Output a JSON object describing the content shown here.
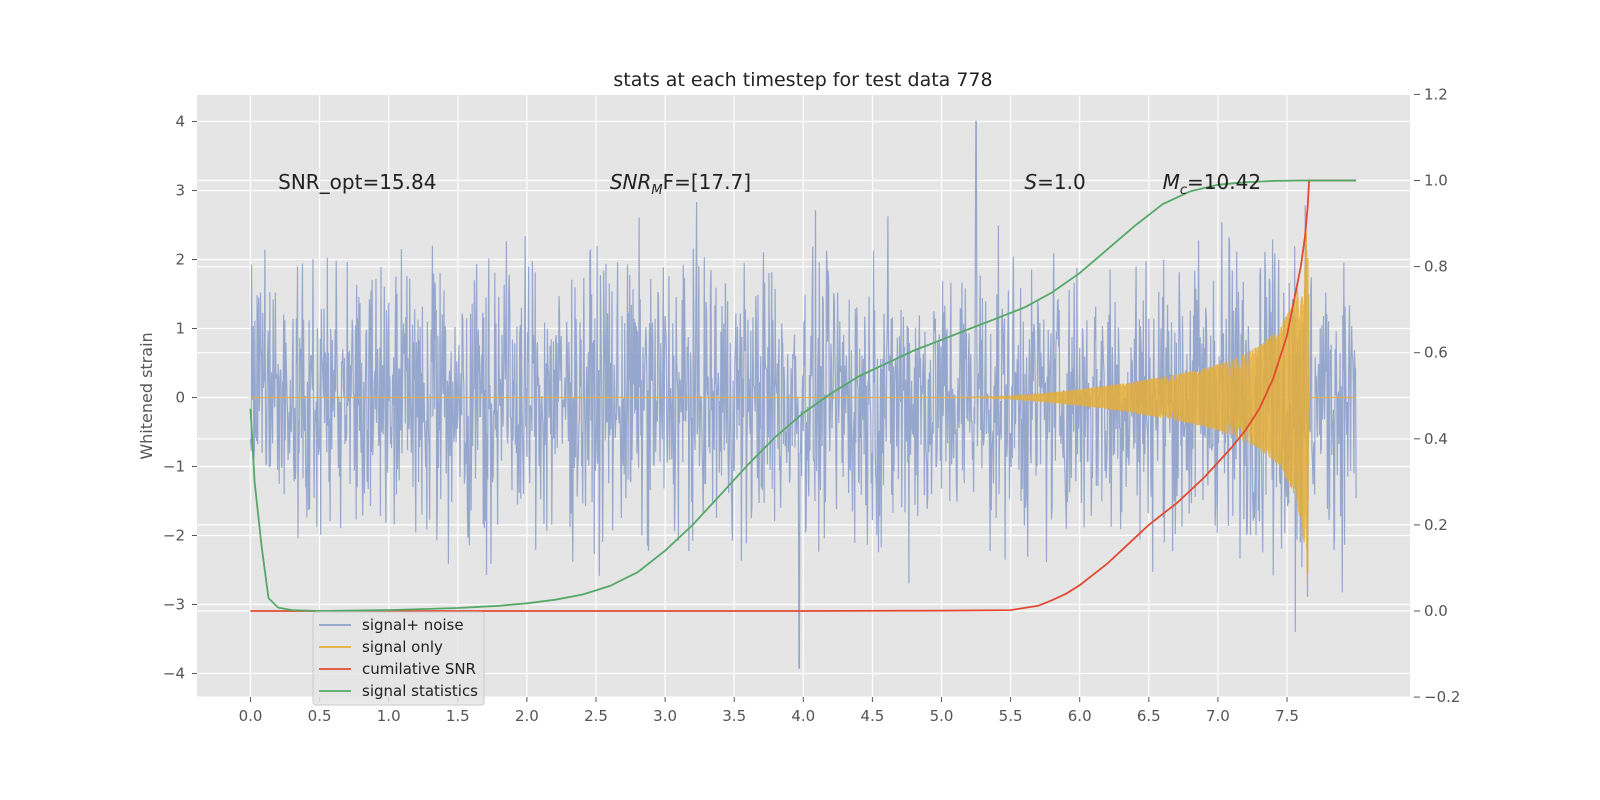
{
  "chart_data": {
    "type": "line",
    "title": "stats at each timestep for test data 778",
    "ylabel": "Whitened strain",
    "xlabel": "",
    "xlim": [
      -0.38,
      8.38
    ],
    "ylim": [
      -4.3,
      4.35
    ],
    "ylim_right": [
      -0.2,
      1.2
    ],
    "x_ticks": [
      0.0,
      0.5,
      1.0,
      1.5,
      2.0,
      2.5,
      3.0,
      3.5,
      4.0,
      4.5,
      5.0,
      5.5,
      6.0,
      6.5,
      7.0,
      7.5
    ],
    "x_tick_labels": [
      "0.0",
      "0.5",
      "1.0",
      "1.5",
      "2.0",
      "2.5",
      "3.0",
      "3.5",
      "4.0",
      "4.5",
      "5.0",
      "5.5",
      "6.0",
      "6.5",
      "7.0",
      "7.5"
    ],
    "y_ticks": [
      -4,
      -3,
      -2,
      -1,
      0,
      1,
      2,
      3,
      4
    ],
    "y_tick_labels": [
      "−4",
      "−3",
      "−2",
      "−1",
      "0",
      "1",
      "2",
      "3",
      "4"
    ],
    "y_ticks_right": [
      -0.2,
      0.0,
      0.2,
      0.4,
      0.6,
      0.8,
      1.0,
      1.2
    ],
    "y_tick_labels_right": [
      "−0.2",
      "0.0",
      "0.2",
      "0.4",
      "0.6",
      "0.8",
      "1.0",
      "1.2"
    ],
    "grid": true,
    "legend_placement": "lower-left",
    "annotations": [
      {
        "text": "SNR_opt=15.84",
        "x": 0.2,
        "y": 3.12
      },
      {
        "text_main": "SNR",
        "text_sub": "M",
        "text_rest": "F=[17.7]",
        "x": 2.6,
        "y": 3.12
      },
      {
        "text_main": "S",
        "text_sub": "",
        "text_rest": "=1.0",
        "x": 5.6,
        "y": 3.12
      },
      {
        "text_main": "M",
        "text_sub": "c",
        "text_rest": "=10.42",
        "x": 6.6,
        "y": 3.12
      }
    ],
    "series": [
      {
        "name": "signal+ noise",
        "color": "#8da0cb",
        "axis": "left",
        "x_range": [
          0.0,
          8.0
        ],
        "y_envelope": [
          -4.0,
          4.0
        ],
        "description_values": "noise-dominated, peaks roughly ±3, outliers near 4.0 at t≈5.25 and −3.9 at t≈3.97"
      },
      {
        "name": "signal only",
        "color": "#e5ae38",
        "axis": "left",
        "x": [
          0.0,
          5.0,
          5.5,
          5.7,
          6.0,
          6.3,
          6.6,
          6.9,
          7.1,
          7.3,
          7.45,
          7.55,
          7.6,
          7.63,
          7.65,
          7.66
        ],
        "amplitude": [
          0.0,
          0.0,
          0.02,
          0.05,
          0.12,
          0.2,
          0.3,
          0.42,
          0.55,
          0.75,
          1.0,
          1.4,
          1.8,
          2.2,
          2.8,
          0.0
        ]
      },
      {
        "name": "cumilative SNR",
        "color": "#e24a33",
        "axis": "right",
        "x": [
          0.0,
          1.0,
          2.0,
          3.0,
          4.0,
          5.0,
          5.5,
          5.7,
          5.8,
          5.9,
          6.0,
          6.1,
          6.2,
          6.3,
          6.4,
          6.5,
          6.6,
          6.7,
          6.8,
          6.9,
          7.0,
          7.1,
          7.2,
          7.3,
          7.4,
          7.45,
          7.5,
          7.55,
          7.6,
          7.63,
          7.65,
          7.66,
          8.0
        ],
        "y": [
          0.0,
          0.0,
          0.0,
          0.0,
          0.0,
          0.001,
          0.002,
          0.012,
          0.025,
          0.04,
          0.06,
          0.085,
          0.11,
          0.14,
          0.17,
          0.2,
          0.225,
          0.25,
          0.28,
          0.31,
          0.345,
          0.38,
          0.42,
          0.47,
          0.54,
          0.59,
          0.64,
          0.72,
          0.8,
          0.87,
          0.94,
          1.0,
          1.0
        ]
      },
      {
        "name": "signal statistics",
        "color": "#55a868",
        "axis": "right",
        "x": [
          0.0,
          0.03,
          0.08,
          0.13,
          0.2,
          0.3,
          0.5,
          1.0,
          1.5,
          1.8,
          2.0,
          2.2,
          2.4,
          2.6,
          2.8,
          3.0,
          3.2,
          3.4,
          3.6,
          3.8,
          4.0,
          4.2,
          4.4,
          4.6,
          4.8,
          5.0,
          5.2,
          5.4,
          5.6,
          5.8,
          6.0,
          6.2,
          6.4,
          6.6,
          6.8,
          7.0,
          7.2,
          7.4,
          7.6,
          7.8,
          8.0
        ],
        "y": [
          0.47,
          0.3,
          0.15,
          0.03,
          0.008,
          0.002,
          0.0,
          0.002,
          0.007,
          0.012,
          0.018,
          0.026,
          0.038,
          0.058,
          0.09,
          0.14,
          0.2,
          0.27,
          0.34,
          0.405,
          0.46,
          0.505,
          0.545,
          0.575,
          0.605,
          0.63,
          0.655,
          0.68,
          0.705,
          0.74,
          0.785,
          0.84,
          0.895,
          0.945,
          0.975,
          0.99,
          0.996,
          0.999,
          1.0,
          1.0,
          1.0
        ]
      }
    ],
    "legend": [
      {
        "label": "signal+ noise",
        "color": "#8da0cb"
      },
      {
        "label": "signal only",
        "color": "#e5ae38"
      },
      {
        "label": "cumilative SNR",
        "color": "#e24a33"
      },
      {
        "label": "signal statistics",
        "color": "#55a868"
      }
    ]
  }
}
